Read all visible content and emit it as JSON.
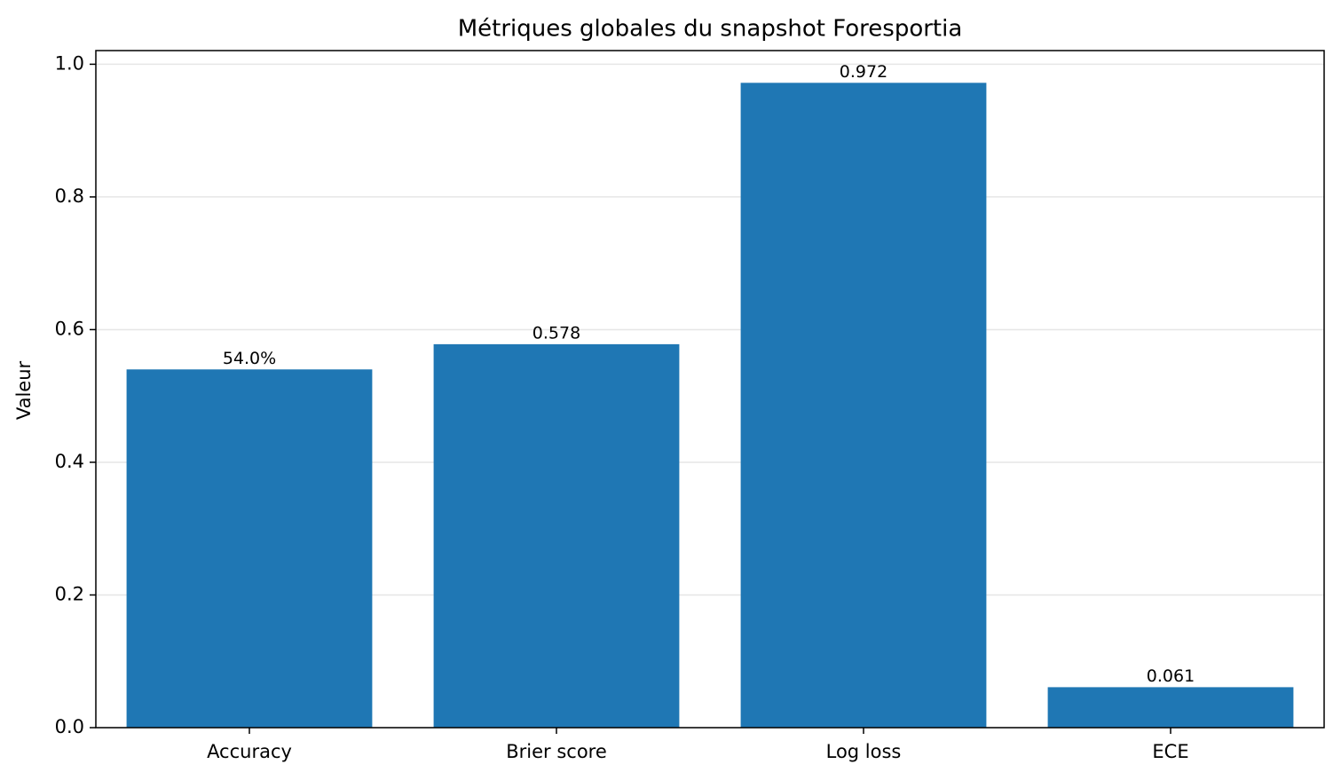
{
  "chart_data": {
    "type": "bar",
    "title": "Métriques globales du snapshot Foresportia",
    "y_label": "Valeur",
    "categories": [
      "Accuracy",
      "Brier score",
      "Log loss",
      "ECE"
    ],
    "values": [
      0.54,
      0.578,
      0.972,
      0.061
    ],
    "value_labels": [
      "54.0%",
      "0.578",
      "0.972",
      "0.061"
    ],
    "color": "#1f77b4",
    "ylim": [
      0,
      1.0206
    ],
    "yticks": [
      {
        "value": 0,
        "label": "0.0"
      },
      {
        "value": 0.2,
        "label": "0.2"
      },
      {
        "value": 0.4,
        "label": "0.4"
      },
      {
        "value": 0.6,
        "label": "0.6"
      },
      {
        "value": 0.8,
        "label": "0.8"
      },
      {
        "value": 1.0,
        "label": "1.0"
      }
    ],
    "grid": true
  }
}
